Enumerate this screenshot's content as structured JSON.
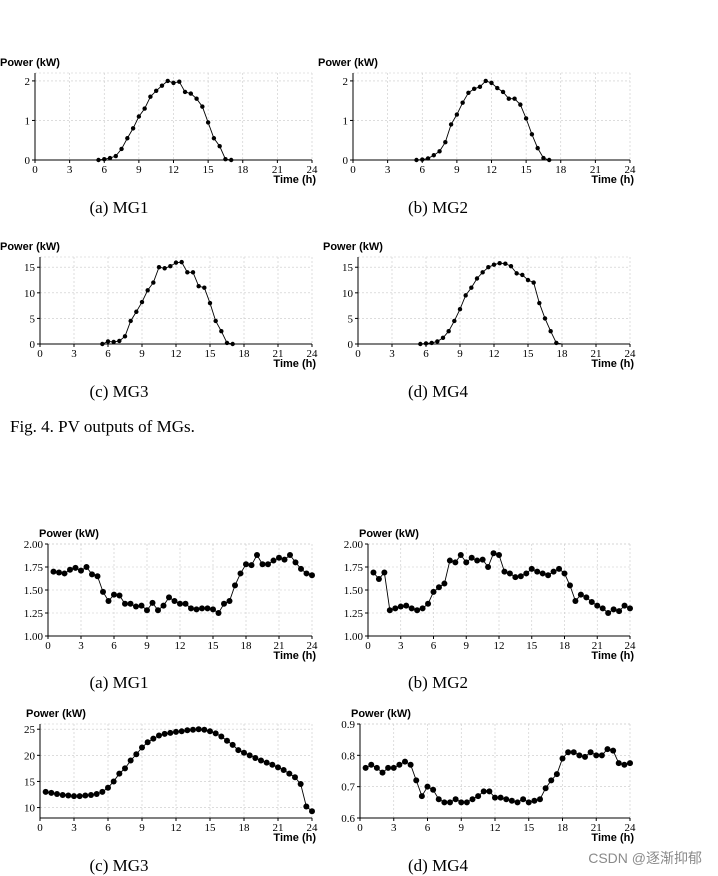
{
  "figure4_caption": "Fig. 4.  PV outputs of MGs.",
  "watermark": "CSDN @逐渐抑郁",
  "chart_data": [
    {
      "type": "line",
      "group": "pv",
      "caption": "(a) MG1",
      "ylabel": "Power (kW)",
      "xlabel": "Time (h)",
      "xlim": [
        0,
        24
      ],
      "xticks": [
        "0",
        "3",
        "6",
        "9",
        "12",
        "15",
        "18",
        "21",
        "24"
      ],
      "ylim": [
        0,
        2.2
      ],
      "yticks": [
        0,
        1,
        2
      ],
      "ytick_labels": [
        "0",
        "1",
        "2"
      ],
      "grid": true,
      "x": [
        0,
        0.5,
        1,
        1.5,
        2,
        2.5,
        3,
        3.5,
        4,
        4.5,
        5,
        5.5,
        6,
        6.5,
        7,
        7.5,
        8,
        8.5,
        9,
        9.5,
        10,
        10.5,
        11,
        11.5,
        12,
        12.5,
        13,
        13.5,
        14,
        14.5,
        15,
        15.5,
        16,
        16.5,
        17,
        17.5,
        18,
        18.5,
        19,
        19.5,
        20,
        20.5,
        21,
        21.5,
        22,
        22.5,
        23,
        23.5,
        24
      ],
      "values": [
        0,
        0,
        0,
        0,
        0,
        0,
        0,
        0,
        0,
        0,
        0,
        0,
        0.02,
        0.05,
        0.1,
        0.28,
        0.55,
        0.8,
        1.1,
        1.3,
        1.6,
        1.75,
        1.88,
        2.0,
        1.95,
        1.98,
        1.72,
        1.68,
        1.55,
        1.35,
        0.95,
        0.55,
        0.35,
        0.02,
        0,
        0,
        0,
        0,
        0,
        0,
        0,
        0,
        0,
        0,
        0,
        0,
        0,
        0,
        0
      ],
      "marker_from": 11,
      "marker_to": 34
    },
    {
      "type": "line",
      "group": "pv",
      "caption": "(b) MG2",
      "ylabel": "Power (kW)",
      "xlabel": "Time (h)",
      "xlim": [
        0,
        24
      ],
      "xticks": [
        "0",
        "3",
        "6",
        "9",
        "12",
        "15",
        "18",
        "21",
        "24"
      ],
      "ylim": [
        0,
        2.2
      ],
      "yticks": [
        0,
        1,
        2
      ],
      "ytick_labels": [
        "0",
        "1",
        "2"
      ],
      "grid": true,
      "x": [
        0,
        0.5,
        1,
        1.5,
        2,
        2.5,
        3,
        3.5,
        4,
        4.5,
        5,
        5.5,
        6,
        6.5,
        7,
        7.5,
        8,
        8.5,
        9,
        9.5,
        10,
        10.5,
        11,
        11.5,
        12,
        12.5,
        13,
        13.5,
        14,
        14.5,
        15,
        15.5,
        16,
        16.5,
        17,
        17.5,
        18,
        18.5,
        19,
        19.5,
        20,
        20.5,
        21,
        21.5,
        22,
        22.5,
        23,
        23.5,
        24
      ],
      "values": [
        0,
        0,
        0,
        0,
        0,
        0,
        0,
        0,
        0,
        0,
        0,
        0,
        0.01,
        0.04,
        0.12,
        0.22,
        0.45,
        0.9,
        1.15,
        1.45,
        1.7,
        1.8,
        1.85,
        2.0,
        1.95,
        1.82,
        1.72,
        1.55,
        1.55,
        1.4,
        1.05,
        0.65,
        0.3,
        0.05,
        0,
        0,
        0,
        0,
        0,
        0,
        0,
        0,
        0,
        0,
        0,
        0,
        0,
        0,
        0
      ],
      "marker_from": 11,
      "marker_to": 34
    },
    {
      "type": "line",
      "group": "pv",
      "caption": "(c) MG3",
      "ylabel": "Power (kW)",
      "xlabel": "Time (h)",
      "xlim": [
        0,
        24
      ],
      "xticks": [
        "0",
        "3",
        "6",
        "9",
        "12",
        "15",
        "18",
        "21",
        "24"
      ],
      "ylim": [
        0,
        17
      ],
      "yticks": [
        0,
        5,
        10,
        15
      ],
      "ytick_labels": [
        "0",
        "5",
        "10",
        "15"
      ],
      "grid": true,
      "x": [
        0,
        0.5,
        1,
        1.5,
        2,
        2.5,
        3,
        3.5,
        4,
        4.5,
        5,
        5.5,
        6,
        6.5,
        7,
        7.5,
        8,
        8.5,
        9,
        9.5,
        10,
        10.5,
        11,
        11.5,
        12,
        12.5,
        13,
        13.5,
        14,
        14.5,
        15,
        15.5,
        16,
        16.5,
        17,
        17.5,
        18,
        18.5,
        19,
        19.5,
        20,
        20.5,
        21,
        21.5,
        22,
        22.5,
        23,
        23.5,
        24
      ],
      "values": [
        0,
        0,
        0,
        0,
        0,
        0,
        0,
        0,
        0,
        0,
        0,
        0,
        0.5,
        0.4,
        0.6,
        1.5,
        4.5,
        6.3,
        8.2,
        10.5,
        12.0,
        15.0,
        14.8,
        15.2,
        15.9,
        16.0,
        14.0,
        14.0,
        11.3,
        11.0,
        8.0,
        4.5,
        2.5,
        0.2,
        0,
        0,
        0,
        0,
        0,
        0,
        0,
        0,
        0,
        0,
        0,
        0,
        0,
        0,
        0
      ],
      "marker_from": 11,
      "marker_to": 34
    },
    {
      "type": "line",
      "group": "pv",
      "caption": "(d) MG4",
      "ylabel": "Power (kW)",
      "xlabel": "Time (h)",
      "xlim": [
        0,
        24
      ],
      "xticks": [
        "0",
        "3",
        "6",
        "9",
        "12",
        "15",
        "18",
        "21",
        "24"
      ],
      "ylim": [
        0,
        17
      ],
      "yticks": [
        0,
        5,
        10,
        15
      ],
      "ytick_labels": [
        "0",
        "5",
        "10",
        "15"
      ],
      "grid": true,
      "x": [
        0,
        0.5,
        1,
        1.5,
        2,
        2.5,
        3,
        3.5,
        4,
        4.5,
        5,
        5.5,
        6,
        6.5,
        7,
        7.5,
        8,
        8.5,
        9,
        9.5,
        10,
        10.5,
        11,
        11.5,
        12,
        12.5,
        13,
        13.5,
        14,
        14.5,
        15,
        15.5,
        16,
        16.5,
        17,
        17.5,
        18,
        18.5,
        19,
        19.5,
        20,
        20.5,
        21,
        21.5,
        22,
        22.5,
        23,
        23.5,
        24
      ],
      "values": [
        0,
        0,
        0,
        0,
        0,
        0,
        0,
        0,
        0,
        0,
        0,
        0,
        0.1,
        0.2,
        0.5,
        1.2,
        2.5,
        4.5,
        6.8,
        9.5,
        11.0,
        12.8,
        14.0,
        15.0,
        15.5,
        15.8,
        15.7,
        15.2,
        13.8,
        13.5,
        12.5,
        12.0,
        8.0,
        5.0,
        2.5,
        0.2,
        0,
        0,
        0,
        0,
        0,
        0,
        0,
        0,
        0,
        0,
        0,
        0,
        0
      ],
      "marker_from": 11,
      "marker_to": 35
    },
    {
      "type": "line",
      "group": "load",
      "caption": "(a) MG1",
      "ylabel": "Power (kW)",
      "xlabel": "Time (h)",
      "xlim": [
        0,
        24
      ],
      "xticks": [
        "0",
        "3",
        "6",
        "9",
        "12",
        "15",
        "18",
        "21",
        "24"
      ],
      "ylim": [
        1.0,
        2.0
      ],
      "yticks": [
        1.0,
        1.25,
        1.5,
        1.75,
        2.0
      ],
      "ytick_labels": [
        "1.00",
        "1.25",
        "1.50",
        "1.75",
        "2.00"
      ],
      "grid": true,
      "x": [
        0.5,
        1,
        1.5,
        2,
        2.5,
        3,
        3.5,
        4,
        4.5,
        5,
        5.5,
        6,
        6.5,
        7,
        7.5,
        8,
        8.5,
        9,
        9.5,
        10,
        10.5,
        11,
        11.5,
        12,
        12.5,
        13,
        13.5,
        14,
        14.5,
        15,
        15.5,
        16,
        16.5,
        17,
        17.5,
        18,
        18.5,
        19,
        19.5,
        20,
        20.5,
        21,
        21.5,
        22,
        22.5,
        23,
        23.5,
        24
      ],
      "values": [
        1.7,
        1.69,
        1.68,
        1.72,
        1.74,
        1.71,
        1.75,
        1.67,
        1.65,
        1.48,
        1.38,
        1.45,
        1.44,
        1.35,
        1.35,
        1.32,
        1.33,
        1.28,
        1.36,
        1.28,
        1.33,
        1.42,
        1.38,
        1.35,
        1.35,
        1.3,
        1.29,
        1.3,
        1.3,
        1.29,
        1.25,
        1.35,
        1.38,
        1.55,
        1.68,
        1.78,
        1.77,
        1.88,
        1.78,
        1.78,
        1.82,
        1.85,
        1.83,
        1.88,
        1.8,
        1.73,
        1.68,
        1.66
      ],
      "marker_from": 0,
      "marker_to": 47
    },
    {
      "type": "line",
      "group": "load",
      "caption": "(b) MG2",
      "ylabel": "Power (kW)",
      "xlabel": "Time (h)",
      "xlim": [
        0,
        24
      ],
      "xticks": [
        "0",
        "3",
        "6",
        "9",
        "12",
        "15",
        "18",
        "21",
        "24"
      ],
      "ylim": [
        1.0,
        2.0
      ],
      "yticks": [
        1.0,
        1.25,
        1.5,
        1.75,
        2.0
      ],
      "ytick_labels": [
        "1.00",
        "1.25",
        "1.50",
        "1.75",
        "2.00"
      ],
      "grid": true,
      "x": [
        0.5,
        1,
        1.5,
        2,
        2.5,
        3,
        3.5,
        4,
        4.5,
        5,
        5.5,
        6,
        6.5,
        7,
        7.5,
        8,
        8.5,
        9,
        9.5,
        10,
        10.5,
        11,
        11.5,
        12,
        12.5,
        13,
        13.5,
        14,
        14.5,
        15,
        15.5,
        16,
        16.5,
        17,
        17.5,
        18,
        18.5,
        19,
        19.5,
        20,
        20.5,
        21,
        21.5,
        22,
        22.5,
        23,
        23.5,
        24
      ],
      "values": [
        1.69,
        1.62,
        1.69,
        1.28,
        1.3,
        1.32,
        1.33,
        1.3,
        1.28,
        1.3,
        1.35,
        1.48,
        1.53,
        1.57,
        1.82,
        1.8,
        1.88,
        1.8,
        1.85,
        1.82,
        1.83,
        1.75,
        1.9,
        1.88,
        1.7,
        1.68,
        1.64,
        1.65,
        1.68,
        1.73,
        1.7,
        1.68,
        1.66,
        1.7,
        1.73,
        1.68,
        1.55,
        1.38,
        1.45,
        1.42,
        1.37,
        1.33,
        1.3,
        1.25,
        1.29,
        1.27,
        1.33,
        1.3
      ],
      "marker_from": 0,
      "marker_to": 47
    },
    {
      "type": "line",
      "group": "load",
      "caption": "(c) MG3",
      "ylabel": "Power (kW)",
      "xlabel": "Time (h)",
      "xlim": [
        0,
        24
      ],
      "xticks": [
        "0",
        "3",
        "6",
        "9",
        "12",
        "15",
        "18",
        "21",
        "24"
      ],
      "ylim": [
        8,
        26
      ],
      "yticks": [
        10,
        15,
        20,
        25
      ],
      "ytick_labels": [
        "10",
        "15",
        "20",
        "25"
      ],
      "grid": true,
      "x": [
        0.5,
        1,
        1.5,
        2,
        2.5,
        3,
        3.5,
        4,
        4.5,
        5,
        5.5,
        6,
        6.5,
        7,
        7.5,
        8,
        8.5,
        9,
        9.5,
        10,
        10.5,
        11,
        11.5,
        12,
        12.5,
        13,
        13.5,
        14,
        14.5,
        15,
        15.5,
        16,
        16.5,
        17,
        17.5,
        18,
        18.5,
        19,
        19.5,
        20,
        20.5,
        21,
        21.5,
        22,
        22.5,
        23,
        23.5,
        24
      ],
      "values": [
        13.0,
        12.8,
        12.6,
        12.4,
        12.3,
        12.2,
        12.2,
        12.3,
        12.4,
        12.6,
        13.0,
        13.8,
        15.0,
        16.5,
        17.5,
        19.0,
        20.2,
        21.5,
        22.5,
        23.2,
        23.8,
        24.1,
        24.3,
        24.5,
        24.6,
        24.8,
        24.9,
        25.0,
        24.9,
        24.6,
        24.2,
        23.6,
        22.8,
        22.0,
        21.0,
        20.5,
        20.0,
        19.5,
        19.0,
        18.6,
        18.2,
        17.7,
        17.2,
        16.5,
        15.8,
        14.5,
        10.2,
        9.3
      ],
      "marker_from": 0,
      "marker_to": 47
    },
    {
      "type": "line",
      "group": "load",
      "caption": "(d) MG4",
      "ylabel": "Power (kW)",
      "xlabel": "Time (h)",
      "xlim": [
        0,
        24
      ],
      "xticks": [
        "0",
        "3",
        "6",
        "9",
        "12",
        "15",
        "18",
        "21",
        "24"
      ],
      "ylim": [
        0.6,
        0.9
      ],
      "yticks": [
        0.6,
        0.7,
        0.8,
        0.9
      ],
      "ytick_labels": [
        "0.6",
        "0.7",
        "0.8",
        "0.9"
      ],
      "grid": true,
      "x": [
        0.5,
        1,
        1.5,
        2,
        2.5,
        3,
        3.5,
        4,
        4.5,
        5,
        5.5,
        6,
        6.5,
        7,
        7.5,
        8,
        8.5,
        9,
        9.5,
        10,
        10.5,
        11,
        11.5,
        12,
        12.5,
        13,
        13.5,
        14,
        14.5,
        15,
        15.5,
        16,
        16.5,
        17,
        17.5,
        18,
        18.5,
        19,
        19.5,
        20,
        20.5,
        21,
        21.5,
        22,
        22.5,
        23,
        23.5,
        24
      ],
      "values": [
        0.76,
        0.77,
        0.76,
        0.745,
        0.76,
        0.76,
        0.77,
        0.78,
        0.77,
        0.72,
        0.67,
        0.7,
        0.69,
        0.66,
        0.65,
        0.65,
        0.66,
        0.65,
        0.65,
        0.66,
        0.67,
        0.685,
        0.685,
        0.665,
        0.665,
        0.66,
        0.655,
        0.65,
        0.66,
        0.65,
        0.655,
        0.66,
        0.695,
        0.72,
        0.74,
        0.79,
        0.81,
        0.81,
        0.8,
        0.795,
        0.81,
        0.8,
        0.8,
        0.82,
        0.815,
        0.775,
        0.77,
        0.775
      ],
      "marker_from": 0,
      "marker_to": 47
    }
  ]
}
